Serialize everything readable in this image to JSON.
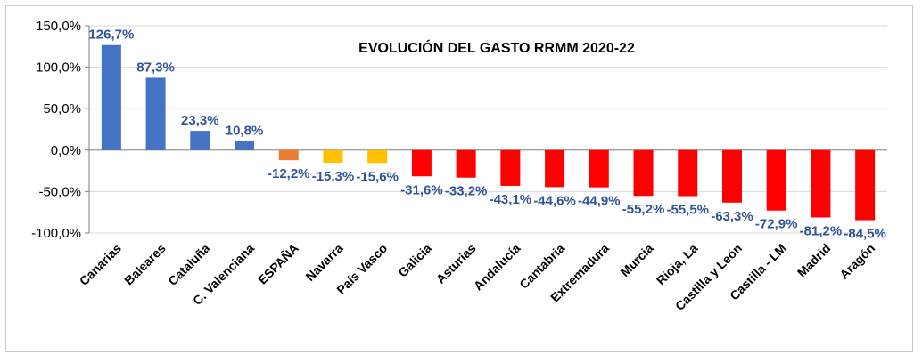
{
  "chart_data": {
    "type": "bar",
    "title": "EVOLUCIÓN DEL GASTO RRMM 2020-22",
    "xlabel": "",
    "ylabel": "",
    "ylim": [
      -100,
      150
    ],
    "yticks": [
      150,
      100,
      50,
      0,
      -50,
      -100
    ],
    "ytick_labels": [
      "150,0%",
      "100,0%",
      "50,0%",
      "0,0%",
      "-50,0%",
      "-100,0%"
    ],
    "grid": true,
    "legend": "none",
    "categories": [
      "Canarias",
      "Baleares",
      "Cataluña",
      "C. Valenciana",
      "ESPAÑA",
      "Navarra",
      "País Vasco",
      "Galicia",
      "Asturias",
      "Andalucía",
      "Cantabria",
      "Extremadura",
      "Murcia",
      "Rioja, La",
      "Castilla y León",
      "Castilla - LM",
      "Madrid",
      "Aragón"
    ],
    "values": [
      126.7,
      87.3,
      23.3,
      10.8,
      -12.2,
      -15.3,
      -15.6,
      -31.6,
      -33.2,
      -43.1,
      -44.6,
      -44.9,
      -55.2,
      -55.5,
      -63.3,
      -72.9,
      -81.2,
      -84.5
    ],
    "value_labels": [
      "126,7%",
      "87,3%",
      "23,3%",
      "10,8%",
      "-12,2%",
      "-15,3%",
      "-15,6%",
      "-31,6%",
      "-33,2%",
      "-43,1%",
      "-44,6%",
      "-44,9%",
      "-55,2%",
      "-55,5%",
      "-63,3%",
      "-72,9%",
      "-81,2%",
      "-84,5%"
    ],
    "bar_colors": [
      "#4472c4",
      "#4472c4",
      "#4472c4",
      "#4472c4",
      "#ed7d31",
      "#ffc000",
      "#ffc000",
      "#ff0000",
      "#ff0000",
      "#ff0000",
      "#ff0000",
      "#ff0000",
      "#ff0000",
      "#ff0000",
      "#ff0000",
      "#ff0000",
      "#ff0000",
      "#ff0000"
    ],
    "label_color": "#2f5597"
  }
}
